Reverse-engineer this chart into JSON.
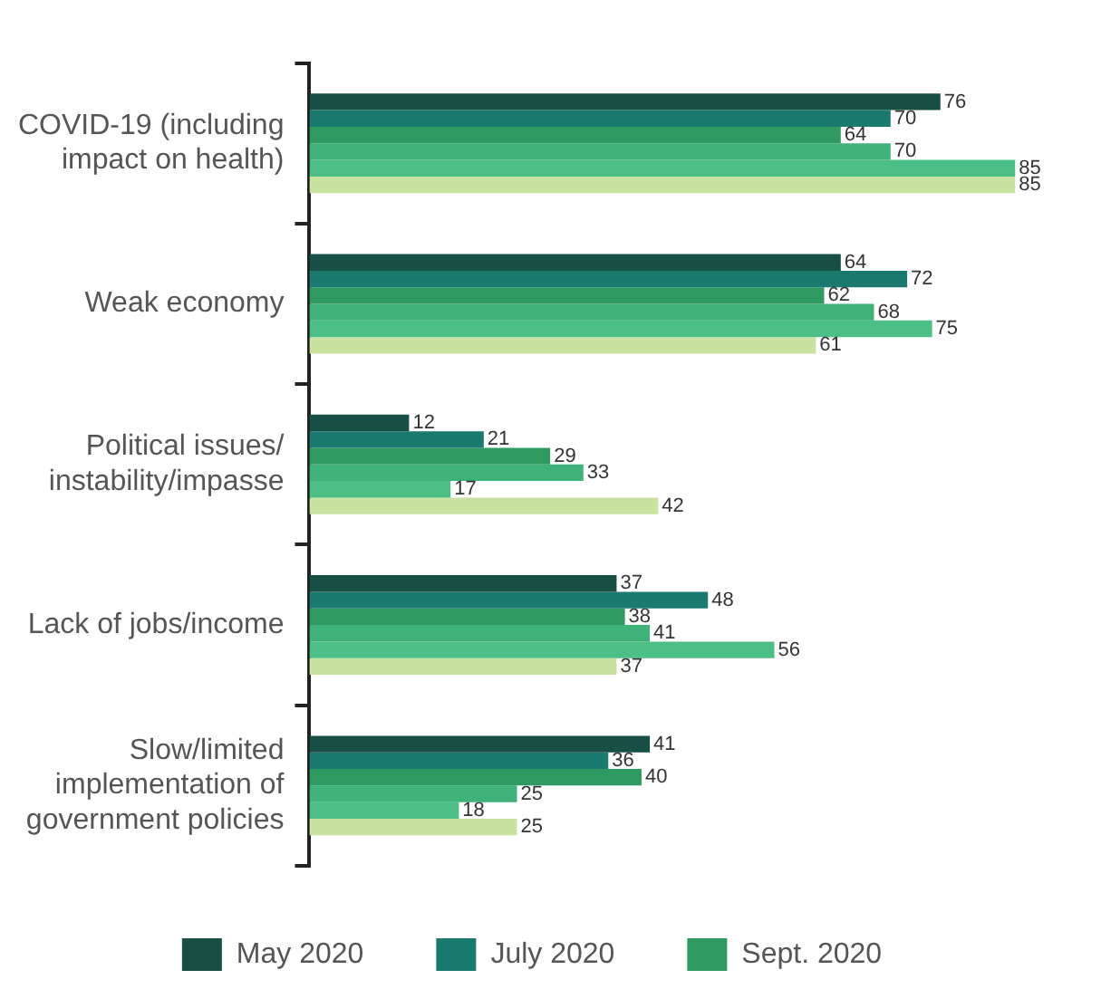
{
  "chart_data": {
    "type": "bar",
    "orientation": "horizontal",
    "categories": [
      "COVID-19 (including impact on health)",
      "Weak economy",
      "Political issues/ instability/impasse",
      "Lack of jobs/income",
      "Slow/limited implementation of government policies"
    ],
    "series": [
      {
        "name": "May 2020",
        "color": "#174f45",
        "values": [
          76,
          64,
          12,
          37,
          41
        ]
      },
      {
        "name": "July 2020",
        "color": "#1b7a70",
        "values": [
          70,
          72,
          21,
          48,
          36
        ]
      },
      {
        "name": "Sept. 2020",
        "color": "#2f9a60",
        "values": [
          64,
          62,
          29,
          38,
          40
        ]
      },
      {
        "color": "#3fb27a",
        "values": [
          70,
          68,
          33,
          41,
          25
        ]
      },
      {
        "color": "#4cbf87",
        "values": [
          85,
          75,
          17,
          56,
          18
        ]
      },
      {
        "color": "#c8e3a0",
        "values": [
          85,
          61,
          42,
          37,
          25
        ]
      }
    ],
    "data_labels": true,
    "grid": false,
    "legend": "bottom"
  }
}
